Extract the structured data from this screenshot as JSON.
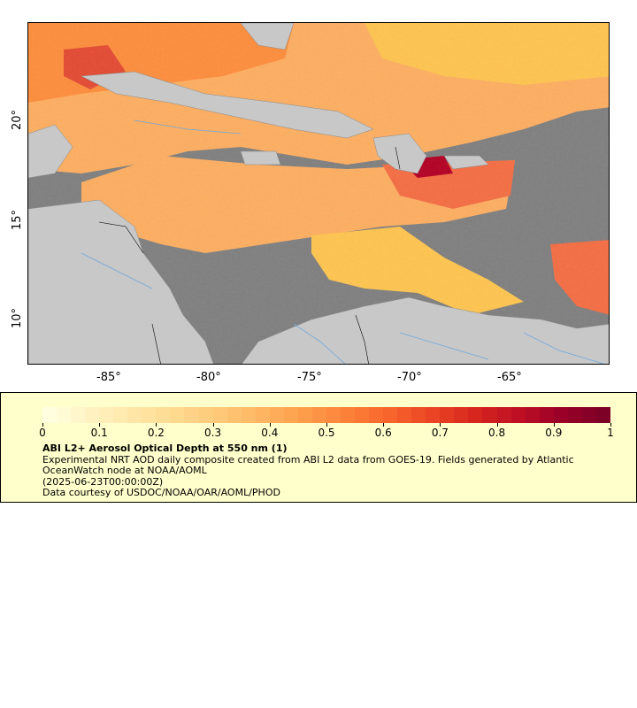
{
  "map": {
    "lon_labels": [
      "-85°",
      "-80°",
      "-75°",
      "-70°",
      "-65°"
    ],
    "lat_labels": [
      "20°",
      "15°",
      "10°"
    ],
    "lon_range": [
      -89,
      -60
    ],
    "lat_range": [
      8,
      25
    ],
    "colors": {
      "ocean_missing": "#7f7f7f",
      "land": "#c8c8c8",
      "rivers": "#6fa8dc",
      "borders": "#000000"
    }
  },
  "legend": {
    "ticks": [
      "0",
      "0.1",
      "0.2",
      "0.3",
      "0.4",
      "0.5",
      "0.6",
      "0.7",
      "0.8",
      "0.9",
      "1"
    ],
    "title": "ABI L2+ Aerosol Optical Depth at 550 nm (1)",
    "description": "Experimental NRT AOD daily composite created from ABI L2 data from GOES-19. Fields generated by Atlantic OceanWatch node at NOAA/AOML",
    "date": "(2025-06-23T00:00:00Z)",
    "credit": "Data courtesy of USDOC/NOAA/OAR/AOML/PHOD",
    "colormap": [
      "#ffffe0",
      "#fff2c0",
      "#ffe6a6",
      "#fed98e",
      "#fec878",
      "#feb460",
      "#fd9d4a",
      "#fd8038",
      "#f7642c",
      "#ea4424",
      "#d7261e",
      "#bf0f24",
      "#9b0028",
      "#7d0026"
    ]
  }
}
